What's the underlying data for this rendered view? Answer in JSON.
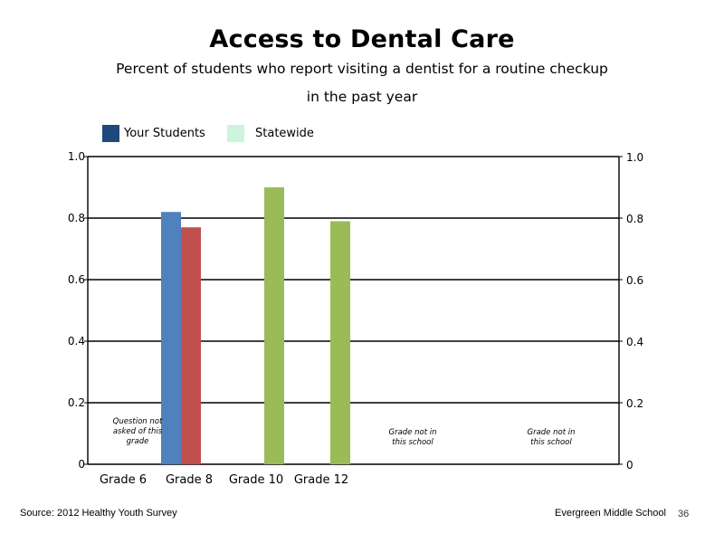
{
  "chart_data": {
    "type": "bar",
    "title": "Access to Dental Care",
    "subtitle_line1": "Percent of students who report visiting a dentist for a routine checkup",
    "subtitle_line2": "in the past year",
    "categories": [
      "Grade 6",
      "Grade 8",
      "Grade 10",
      "Grade 12"
    ],
    "ylim": [
      0,
      1
    ],
    "yticks": [
      "0",
      "0.2",
      "0.4",
      "0.6",
      "0.8",
      "1.0"
    ],
    "right_axis_ticks": [
      "0",
      "0.2",
      "0.4",
      "0.6",
      "0.8",
      "1.0"
    ],
    "grid": true,
    "legend": {
      "position": "top-left",
      "items": [
        {
          "label": "Your Students",
          "color": "#1f497d"
        },
        {
          "label": "Statewide",
          "color": "#ccf5dc"
        }
      ]
    },
    "series": [
      {
        "name": "Your Students",
        "values": [
          null,
          0.82,
          null,
          null
        ],
        "color": "#4f81bd"
      },
      {
        "name": "Statewide",
        "values": [
          null,
          0.77,
          0.9,
          0.79
        ],
        "color": "#c0504d"
      }
    ],
    "bar_colors": {
      "grade8_statewide": "#c0504d",
      "upper_grades": "#9bbb59"
    },
    "annotations": [
      {
        "lines": [
          "Question not",
          "asked of this",
          "grade"
        ]
      },
      {
        "lines": [
          "Grade not in",
          "this school"
        ]
      },
      {
        "lines": [
          "Grade not in",
          "this school"
        ]
      }
    ]
  },
  "footer": {
    "source": "Source: 2012 Healthy Youth Survey",
    "school": "Evergreen Middle School",
    "page": "36"
  }
}
